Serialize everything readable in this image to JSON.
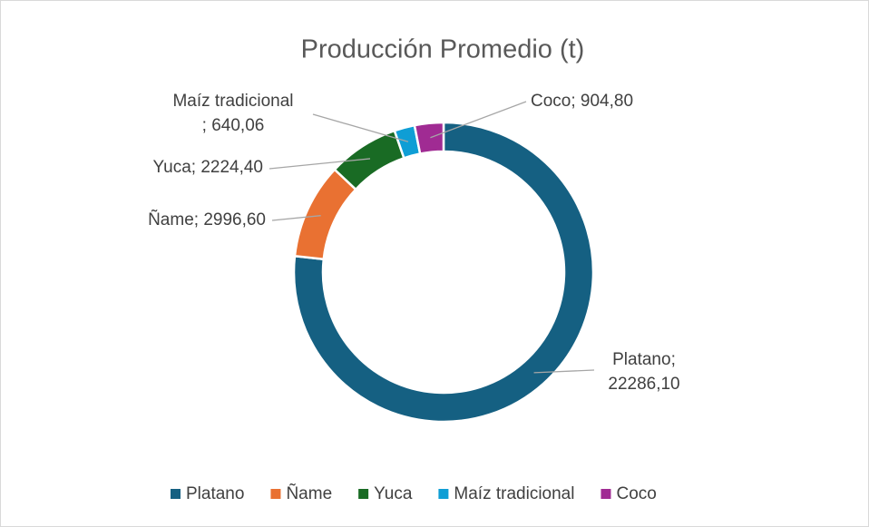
{
  "chart_data": {
    "type": "doughnut",
    "title": "Producción Promedio (t)",
    "categories": [
      "Platano",
      "Ñame",
      "Yuca",
      "Maíz tradicional",
      "Coco"
    ],
    "values": [
      22286.1,
      2996.6,
      2224.4,
      640.06,
      904.8
    ],
    "value_labels": [
      "Platano;\n22286,10",
      "Ñame; 2996,60",
      "Yuca; 2224,40",
      "Maíz tradicional\n; 640,06",
      "Coco; 904,80"
    ],
    "colors": [
      "#156082",
      "#e97132",
      "#196b24",
      "#0f9ed5",
      "#a02b93"
    ],
    "legend": "bottom"
  }
}
